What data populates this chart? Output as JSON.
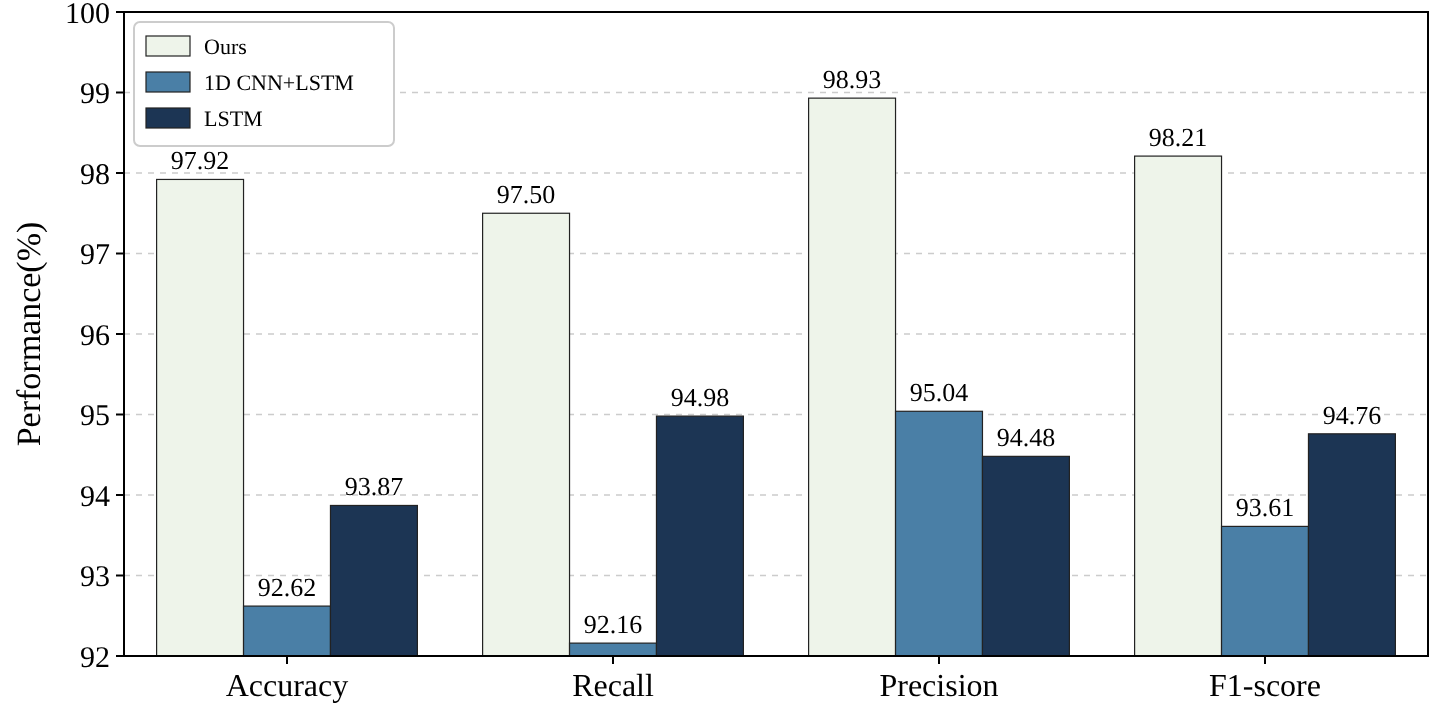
{
  "chart_data": {
    "type": "bar",
    "ylabel": "Performance(%)",
    "categories": [
      "Accuracy",
      "Recall",
      "Precision",
      "F1-score"
    ],
    "series": [
      {
        "name": "Ours",
        "color": "#eef4ea",
        "values": [
          97.92,
          97.5,
          98.93,
          98.21
        ],
        "value_labels": [
          "97.92",
          "97.50",
          "98.93",
          "98.21"
        ]
      },
      {
        "name": "1D CNN+LSTM",
        "color": "#4a7fa6",
        "values": [
          92.62,
          92.16,
          95.04,
          93.61
        ],
        "value_labels": [
          "92.62",
          "92.16",
          "95.04",
          "93.61"
        ]
      },
      {
        "name": "LSTM",
        "color": "#1c3554",
        "values": [
          93.87,
          94.98,
          94.48,
          94.76
        ],
        "value_labels": [
          "93.87",
          "94.98",
          "94.48",
          "94.76"
        ]
      }
    ],
    "ylim": [
      92,
      100
    ],
    "yticks": [
      92,
      93,
      94,
      95,
      96,
      97,
      98,
      99,
      100
    ],
    "grid": "y",
    "legend": "top left"
  }
}
